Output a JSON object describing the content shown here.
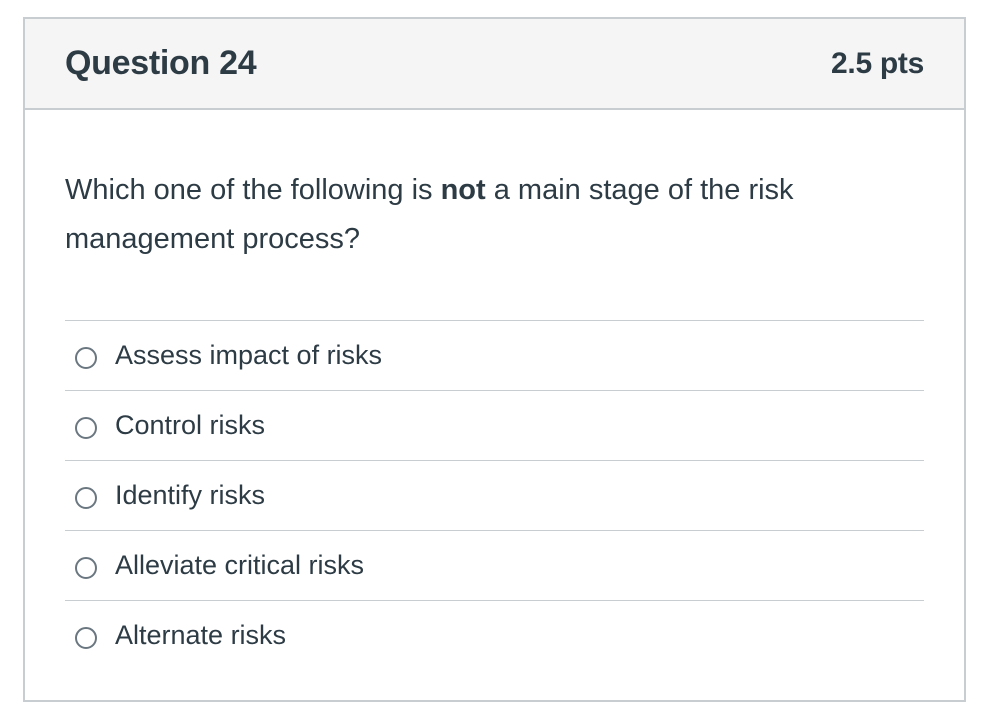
{
  "question": {
    "title": "Question 24",
    "points": "2.5 pts",
    "text_before": "Which one of the following is ",
    "text_emphasis": "not",
    "text_after": " a main stage of the risk management process?"
  },
  "answers": [
    {
      "label": "Assess impact of risks",
      "selected": false
    },
    {
      "label": "Control risks",
      "selected": false
    },
    {
      "label": "Identify risks",
      "selected": false
    },
    {
      "label": "Alleviate critical risks",
      "selected": false
    },
    {
      "label": "Alternate risks",
      "selected": false
    }
  ],
  "colors": {
    "text": "#2d3b45",
    "border": "#c7cdd1",
    "header_bg": "#f5f5f5",
    "radio_border": "#6b7780"
  }
}
